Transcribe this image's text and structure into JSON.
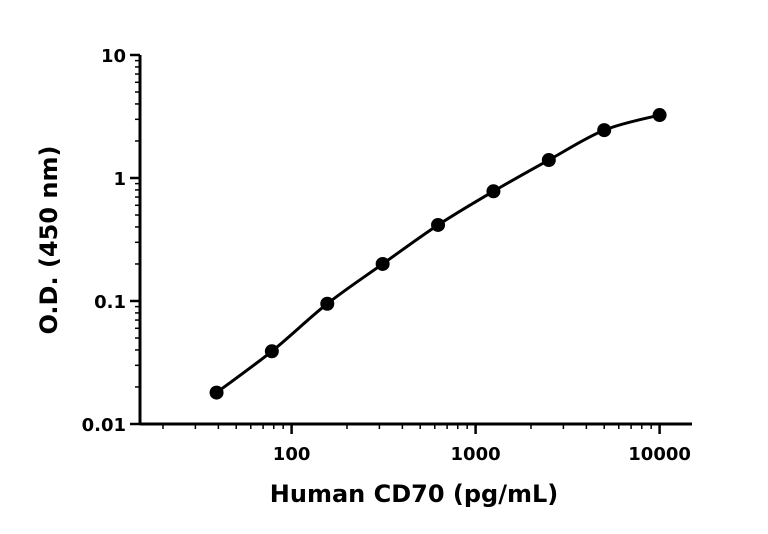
{
  "chart_data": {
    "type": "scatter",
    "xlabel": "Human CD70 (pg/mL)",
    "ylabel": "O.D. (450 nm)",
    "xscale": "log",
    "yscale": "log",
    "xlim": [
      15,
      15000
    ],
    "ylim": [
      0.01,
      10
    ],
    "xticks": [
      {
        "value": 100,
        "label": "100"
      },
      {
        "value": 1000,
        "label": "1000"
      },
      {
        "value": 10000,
        "label": "10000"
      }
    ],
    "yticks": [
      {
        "value": 0.01,
        "label": "0.01"
      },
      {
        "value": 0.1,
        "label": "0.1"
      },
      {
        "value": 1,
        "label": "1"
      },
      {
        "value": 10,
        "label": "10"
      }
    ],
    "grid": false,
    "legend": "none",
    "series": [
      {
        "x": [
          39.1,
          78.1,
          156.3,
          312.5,
          625,
          1250,
          2500,
          5000,
          10000
        ],
        "y": [
          0.018,
          0.039,
          0.095,
          0.2,
          0.415,
          0.78,
          1.4,
          2.45,
          3.25
        ],
        "fit_curve": true
      }
    ]
  }
}
